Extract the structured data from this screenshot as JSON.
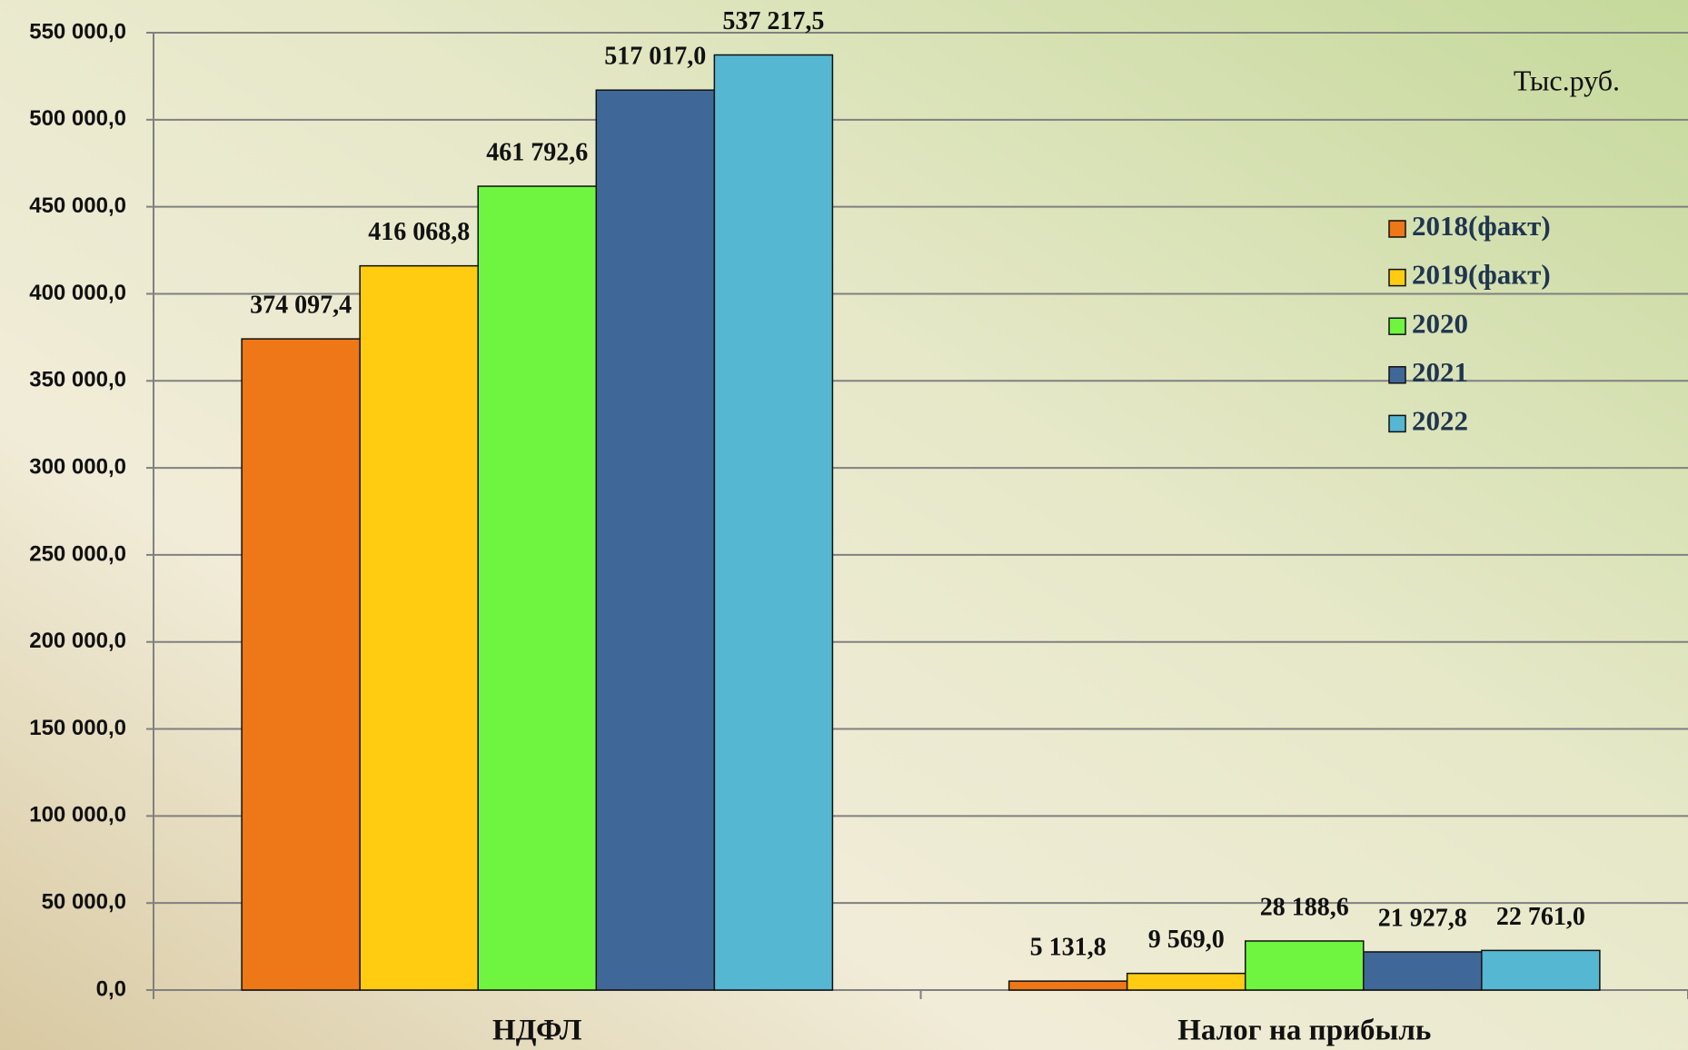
{
  "chart_data": {
    "type": "bar",
    "annotation": "Тыс.руб.",
    "categories": [
      "НДФЛ",
      "Налог на прибыль"
    ],
    "series": [
      {
        "name": "2018(факт)",
        "color": "#ee7717",
        "values": [
          374097.4,
          5131.8
        ],
        "value_labels": [
          "374 097,4",
          "5 131,8"
        ]
      },
      {
        "name": "2019(факт)",
        "color": "#ffcc11",
        "values": [
          416068.8,
          9569.0
        ],
        "value_labels": [
          "416 068,8",
          "9 569,0"
        ]
      },
      {
        "name": "2020",
        "color": "#6ff53f",
        "values": [
          461792.6,
          28188.6
        ],
        "value_labels": [
          "461 792,6",
          "28 188,6"
        ]
      },
      {
        "name": "2021",
        "color": "#3f6898",
        "values": [
          517017.0,
          21927.8
        ],
        "value_labels": [
          "517 017,0",
          "21 927,8"
        ]
      },
      {
        "name": "2022",
        "color": "#55b7d2",
        "values": [
          537217.5,
          22761.0
        ],
        "value_labels": [
          "537 217,5",
          "22 761,0"
        ]
      }
    ],
    "ylim": [
      0,
      550000
    ],
    "yticks": [
      {
        "value": 0,
        "label": "0,0"
      },
      {
        "value": 50000,
        "label": "50 000,0"
      },
      {
        "value": 100000,
        "label": "100 000,0"
      },
      {
        "value": 150000,
        "label": "150 000,0"
      },
      {
        "value": 200000,
        "label": "200 000,0"
      },
      {
        "value": 250000,
        "label": "250 000,0"
      },
      {
        "value": 300000,
        "label": "300 000,0"
      },
      {
        "value": 350000,
        "label": "350 000,0"
      },
      {
        "value": 400000,
        "label": "400 000,0"
      },
      {
        "value": 450000,
        "label": "450 000,0"
      },
      {
        "value": 500000,
        "label": "500 000,0"
      },
      {
        "value": 550000,
        "label": "550 000,0"
      }
    ],
    "grid": true,
    "legend": "right"
  }
}
